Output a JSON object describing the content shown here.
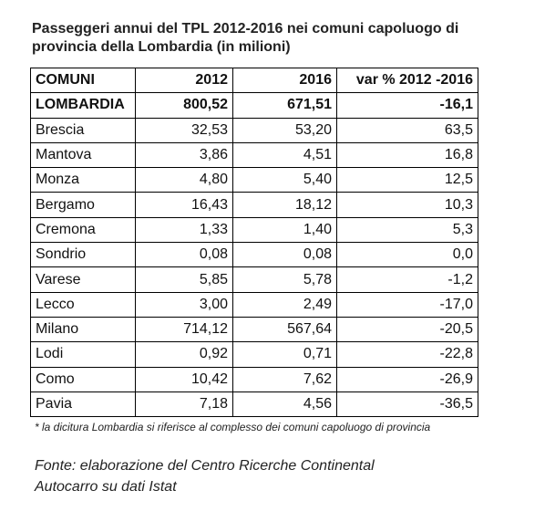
{
  "title": "Passeggeri annui del TPL 2012-2016 nei comuni capoluogo di provincia della Lombardia (in milioni)",
  "table": {
    "header": [
      "COMUNI",
      "2012",
      "2016",
      "var % 2012 -2016"
    ],
    "rows": [
      [
        "LOMBARDIA",
        "800,52",
        "671,51",
        "-16,1"
      ],
      [
        "Brescia",
        "32,53",
        "53,20",
        "63,5"
      ],
      [
        "Mantova",
        "3,86",
        "4,51",
        "16,8"
      ],
      [
        "Monza",
        "4,80",
        "5,40",
        "12,5"
      ],
      [
        "Bergamo",
        "16,43",
        "18,12",
        "10,3"
      ],
      [
        "Cremona",
        "1,33",
        "1,40",
        "5,3"
      ],
      [
        "Sondrio",
        "0,08",
        "0,08",
        "0,0"
      ],
      [
        "Varese",
        "5,85",
        "5,78",
        "-1,2"
      ],
      [
        "Lecco",
        "3,00",
        "2,49",
        "-17,0"
      ],
      [
        "Milano",
        "714,12",
        "567,64",
        "-20,5"
      ],
      [
        "Lodi",
        "0,92",
        "0,71",
        "-22,8"
      ],
      [
        "Como",
        "10,42",
        "7,62",
        "-26,9"
      ],
      [
        "Pavia",
        "7,18",
        "4,56",
        "-36,5"
      ]
    ]
  },
  "footnote": "* la dicitura Lombardia si riferisce al complesso dei comuni capoluogo di provincia",
  "source": "Fonte: elaborazione del Centro Ricerche Continental Autocarro su dati Istat"
}
